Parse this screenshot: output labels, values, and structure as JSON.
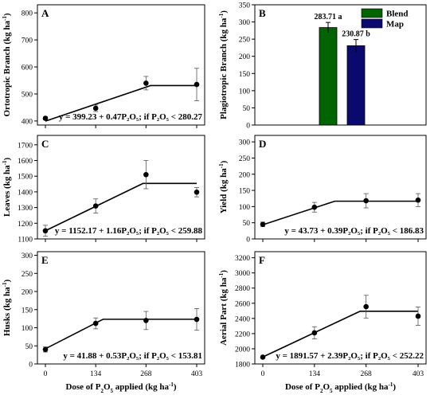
{
  "chart_data": [
    {
      "id": "A",
      "type": "scatter",
      "letter": "A",
      "ylabel": "Ortotropic Branch (kg ha-1)",
      "yticks": [
        400,
        500,
        600,
        700,
        800
      ],
      "ylim": [
        385,
        830
      ],
      "xticks": [
        0,
        134,
        268,
        403
      ],
      "show_xtick_labels": false,
      "points": [
        {
          "x": 0,
          "y": 410,
          "err": 5
        },
        {
          "x": 134,
          "y": 447,
          "err": 12
        },
        {
          "x": 268,
          "y": 540,
          "err": 25
        },
        {
          "x": 403,
          "y": 535,
          "err": 60
        }
      ],
      "fit": [
        [
          0,
          399.23
        ],
        [
          280.27,
          530.96
        ],
        [
          403,
          530.96
        ]
      ],
      "equation": "y = 399.23 + 0.47P₂O₅;  if P₂O₅ < 280.27"
    },
    {
      "id": "B",
      "type": "bar",
      "letter": "B",
      "ylabel": "Plagiotropic Branch (kg ha-1)",
      "yticks": [
        0,
        50,
        100,
        150,
        200,
        250,
        300,
        350
      ],
      "ylim": [
        0,
        350
      ],
      "categories": [
        "Blend",
        "Map"
      ],
      "values": [
        283.71,
        230.87
      ],
      "errors": [
        15,
        18
      ],
      "value_labels": [
        "283.71 a",
        "230.87 b"
      ],
      "colors": [
        "#006400",
        "#0a0a6e"
      ],
      "legend": [
        {
          "name": "Blend",
          "color": "#006400"
        },
        {
          "name": "Map",
          "color": "#0a0a6e"
        }
      ]
    },
    {
      "id": "C",
      "type": "scatter",
      "letter": "C",
      "ylabel": "Leaves (kg ha-1)",
      "yticks": [
        1100,
        1200,
        1300,
        1400,
        1500,
        1600,
        1700
      ],
      "ylim": [
        1100,
        1760
      ],
      "xticks": [
        0,
        134,
        268,
        403
      ],
      "show_xtick_labels": false,
      "points": [
        {
          "x": 0,
          "y": 1152,
          "err": 35
        },
        {
          "x": 134,
          "y": 1310,
          "err": 45
        },
        {
          "x": 268,
          "y": 1510,
          "err": 90
        },
        {
          "x": 403,
          "y": 1398,
          "err": 30
        }
      ],
      "fit": [
        [
          0,
          1152.17
        ],
        [
          259.88,
          1453.63
        ],
        [
          403,
          1453.63
        ]
      ],
      "equation": "y = 1152.17 + 1.16P₂O₅;  if P₂O₅ < 259.88"
    },
    {
      "id": "D",
      "type": "scatter",
      "letter": "D",
      "ylabel": "Yield (kg ha-1)",
      "yticks": [
        0,
        50,
        100,
        150,
        200,
        250,
        300
      ],
      "ylim": [
        0,
        320
      ],
      "xticks": [
        0,
        134,
        268,
        403
      ],
      "show_xtick_labels": false,
      "points": [
        {
          "x": 0,
          "y": 45,
          "err": 7
        },
        {
          "x": 134,
          "y": 98,
          "err": 15
        },
        {
          "x": 268,
          "y": 118,
          "err": 22
        },
        {
          "x": 403,
          "y": 120,
          "err": 20
        }
      ],
      "fit": [
        [
          0,
          43.73
        ],
        [
          186.83,
          116.6
        ],
        [
          403,
          116.6
        ]
      ],
      "equation": "y = 43.73 + 0.39P₂O₅;  if P₂O₅ < 186.83"
    },
    {
      "id": "E",
      "type": "scatter",
      "letter": "E",
      "ylabel": "Husks (kg ha-1)",
      "yticks": [
        0,
        50,
        100,
        150,
        200,
        250,
        300
      ],
      "ylim": [
        0,
        310
      ],
      "xticks": [
        0,
        134,
        268,
        403
      ],
      "show_xtick_labels": true,
      "xlabel": "Dose of P2O5 applied (kg ha-1)",
      "points": [
        {
          "x": 0,
          "y": 40,
          "err": 7
        },
        {
          "x": 134,
          "y": 112,
          "err": 15
        },
        {
          "x": 268,
          "y": 120,
          "err": 25
        },
        {
          "x": 403,
          "y": 123,
          "err": 30
        }
      ],
      "fit": [
        [
          0,
          41.88
        ],
        [
          153.81,
          123.4
        ],
        [
          403,
          123.4
        ]
      ],
      "equation": "y = 41.88 + 0.53P₂O₅;  if P₂O₅ < 153.81"
    },
    {
      "id": "F",
      "type": "scatter",
      "letter": "F",
      "ylabel": "Aerial Part (kg ha-1)",
      "yticks": [
        1800,
        2000,
        2200,
        2400,
        2600,
        2800,
        3000,
        3200
      ],
      "ylim": [
        1800,
        3280
      ],
      "xticks": [
        0,
        134,
        268,
        403
      ],
      "show_xtick_labels": true,
      "xlabel": "Dose of P2O5 applied (kg ha-1)",
      "points": [
        {
          "x": 0,
          "y": 1890,
          "err": 15
        },
        {
          "x": 134,
          "y": 2210,
          "err": 80
        },
        {
          "x": 268,
          "y": 2555,
          "err": 150
        },
        {
          "x": 403,
          "y": 2430,
          "err": 120
        }
      ],
      "fit": [
        [
          0,
          1891.57
        ],
        [
          252.22,
          2494.38
        ],
        [
          403,
          2494.38
        ]
      ],
      "equation": "y = 1891.57 + 2.39P₂O₅;  if P₂O₅ < 252.22"
    }
  ]
}
